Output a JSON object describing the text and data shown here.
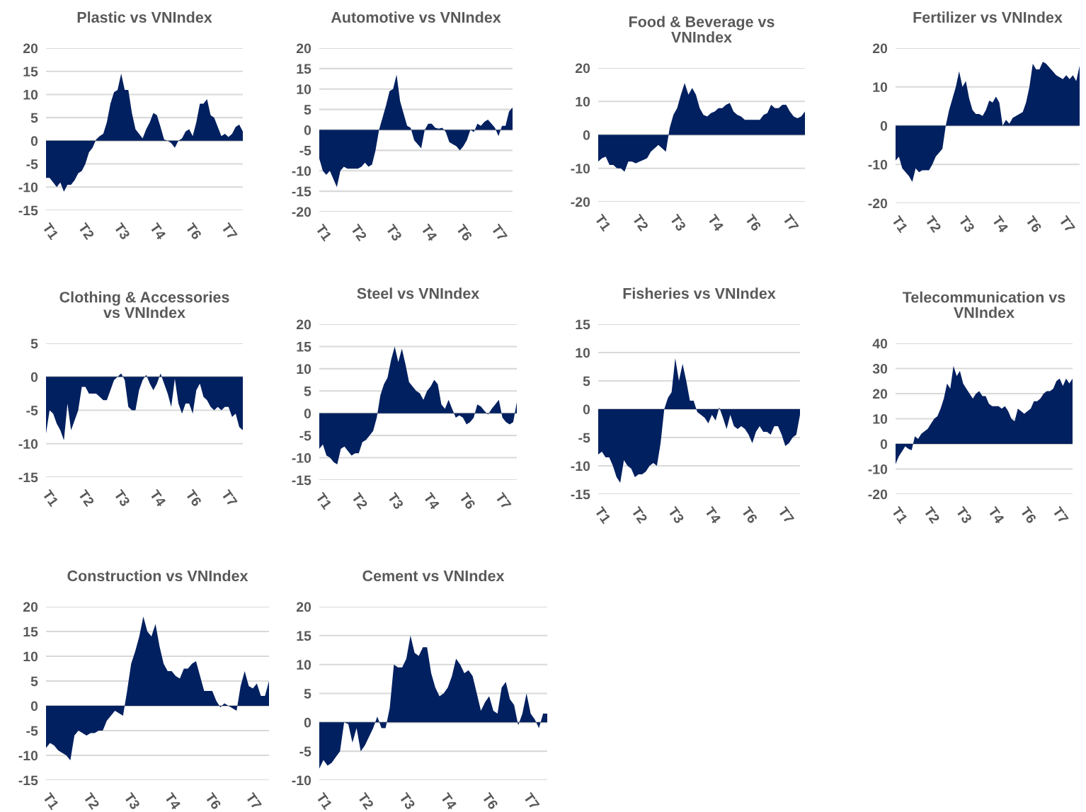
{
  "chart_data": [
    {
      "type": "area",
      "title": "Plastic vs VNIndex",
      "color": "#002060",
      "ylim": [
        -15,
        20
      ],
      "yticks": [
        -15,
        -10,
        -5,
        0,
        5,
        10,
        15,
        20
      ],
      "grid": "y",
      "categories": [
        null,
        "T1",
        null,
        null,
        null,
        null,
        null,
        null,
        null,
        null,
        null,
        "T2",
        null,
        null,
        null,
        null,
        null,
        null,
        null,
        null,
        null,
        "T3",
        null,
        null,
        null,
        null,
        null,
        null,
        null,
        null,
        null,
        "T4",
        null,
        null,
        null,
        null,
        null,
        null,
        null,
        null,
        null,
        "T6",
        null,
        null,
        null,
        null,
        null,
        null,
        null,
        null,
        null,
        "T7",
        null,
        null,
        null,
        null
      ],
      "values": [
        -8,
        -8,
        -9,
        -10,
        -9,
        -11,
        -9.5,
        -9.5,
        -8.5,
        -7,
        -6.5,
        -5,
        -2.5,
        -1.5,
        0.3,
        1,
        1.5,
        4,
        8,
        10.5,
        11,
        14.5,
        11,
        11,
        6,
        2.5,
        1.5,
        0.5,
        2.5,
        4,
        6,
        5.5,
        3,
        0.3,
        0,
        -0.5,
        -1.5,
        0,
        0.5,
        2,
        2.5,
        1,
        4,
        8,
        8,
        9,
        5.5,
        5,
        3,
        1,
        1.5,
        0.8,
        1.5,
        3,
        3.5,
        2
      ]
    },
    {
      "type": "area",
      "title": "Automotive vs VNIndex",
      "color": "#002060",
      "ylim": [
        -20,
        20
      ],
      "yticks": [
        -20,
        -15,
        -10,
        -5,
        0,
        5,
        10,
        15,
        20
      ],
      "grid": "y",
      "categories": [
        null,
        "T1",
        null,
        null,
        null,
        null,
        null,
        null,
        null,
        null,
        null,
        "T2",
        null,
        null,
        null,
        null,
        null,
        null,
        null,
        null,
        null,
        "T3",
        null,
        null,
        null,
        null,
        null,
        null,
        null,
        null,
        null,
        "T4",
        null,
        null,
        null,
        null,
        null,
        null,
        null,
        null,
        null,
        "T6",
        null,
        null,
        null,
        null,
        null,
        null,
        null,
        null,
        null,
        "T7",
        null,
        null,
        null,
        null
      ],
      "values": [
        -7,
        -10,
        -11,
        -10,
        -12,
        -14,
        -10,
        -9,
        -9.5,
        -9.5,
        -9.5,
        -9.5,
        -9,
        -8,
        -9,
        -8.5,
        -5,
        0,
        3,
        6,
        9.5,
        10,
        13.5,
        7,
        4,
        1,
        0.5,
        -2.5,
        -3.5,
        -4.5,
        0,
        1.5,
        1.5,
        0.5,
        0.3,
        0.5,
        -0.5,
        -3,
        -3.5,
        -4,
        -5,
        -4,
        -2.5,
        0,
        -0.5,
        1.5,
        1,
        2,
        2.5,
        1.5,
        0.5,
        -1.5,
        1,
        1,
        4.5,
        5.5
      ]
    },
    {
      "type": "area",
      "title": "Food & Beverage vs\nVNIndex",
      "color": "#002060",
      "ylim": [
        -20,
        20
      ],
      "yticks": [
        -20,
        -10,
        0,
        10,
        20
      ],
      "grid": "y",
      "categories": [
        null,
        "T1",
        null,
        null,
        null,
        null,
        null,
        null,
        null,
        null,
        null,
        "T2",
        null,
        null,
        null,
        null,
        null,
        null,
        null,
        null,
        null,
        "T3",
        null,
        null,
        null,
        null,
        null,
        null,
        null,
        null,
        null,
        "T4",
        null,
        null,
        null,
        null,
        null,
        null,
        null,
        null,
        null,
        "T6",
        null,
        null,
        null,
        null,
        null,
        null,
        null,
        null,
        null,
        "T7",
        null,
        null,
        null,
        null
      ],
      "values": [
        -8,
        -7,
        -6.5,
        -9,
        -9,
        -10,
        -10,
        -11,
        -8,
        -8,
        -8.5,
        -8,
        -7.5,
        -7,
        -5,
        -4,
        -3,
        -4,
        -5,
        2,
        6,
        8,
        12,
        15.5,
        12,
        14,
        12,
        8,
        6,
        5.5,
        6.5,
        7,
        8,
        8,
        9,
        9.5,
        7,
        6,
        5.5,
        4.5,
        4.5,
        4.5,
        4.5,
        4.5,
        6,
        6.5,
        9,
        8,
        8,
        9,
        9,
        7,
        5.5,
        5,
        5.5,
        7
      ]
    },
    {
      "type": "area",
      "title": "Fertilizer vs VNIndex",
      "color": "#002060",
      "ylim": [
        -20,
        20
      ],
      "yticks": [
        -20,
        -10,
        0,
        10,
        20
      ],
      "grid": "y",
      "categories": [
        null,
        "T1",
        null,
        null,
        null,
        null,
        null,
        null,
        null,
        null,
        null,
        "T2",
        null,
        null,
        null,
        null,
        null,
        null,
        null,
        null,
        null,
        "T3",
        null,
        null,
        null,
        null,
        null,
        null,
        null,
        null,
        null,
        "T4",
        null,
        null,
        null,
        null,
        null,
        null,
        null,
        null,
        null,
        "T6",
        null,
        null,
        null,
        null,
        null,
        null,
        null,
        null,
        null,
        "T7",
        null,
        null,
        null,
        null
      ],
      "values": [
        -9,
        -8,
        -11,
        -12,
        -13,
        -14.5,
        -11,
        -12,
        -11.5,
        -11.5,
        -11.5,
        -10,
        -8,
        -7,
        -6,
        0,
        4,
        7,
        10,
        14,
        10,
        11.5,
        7,
        4,
        3,
        3,
        2.5,
        4,
        6.5,
        6,
        7.5,
        6,
        0,
        1.5,
        0.5,
        2,
        2.5,
        3,
        3.5,
        6,
        10,
        16,
        14.5,
        14.5,
        16.5,
        16,
        15,
        14,
        13,
        12.5,
        12,
        13,
        12,
        13,
        11.5,
        15.5
      ]
    },
    {
      "type": "area",
      "title": "Clothing & Accessories\nvs VNIndex",
      "color": "#002060",
      "ylim": [
        -15,
        5
      ],
      "yticks": [
        -15,
        -10,
        -5,
        0,
        5
      ],
      "grid": "y",
      "categories": [
        null,
        "T1",
        null,
        null,
        null,
        null,
        null,
        null,
        null,
        null,
        null,
        "T2",
        null,
        null,
        null,
        null,
        null,
        null,
        null,
        null,
        null,
        "T3",
        null,
        null,
        null,
        null,
        null,
        null,
        null,
        null,
        null,
        "T4",
        null,
        null,
        null,
        null,
        null,
        null,
        null,
        null,
        null,
        "T6",
        null,
        null,
        null,
        null,
        null,
        null,
        null,
        null,
        null,
        "T7",
        null,
        null,
        null,
        null
      ],
      "values": [
        -8.5,
        -5,
        -5.5,
        -7,
        -8,
        -9.5,
        -4,
        -8,
        -6.5,
        -5,
        -1.5,
        -1.5,
        -2.5,
        -2.5,
        -2.5,
        -3,
        -3.5,
        -3.5,
        -2,
        -0.5,
        0,
        0.5,
        -0.5,
        -4.5,
        -5,
        -5,
        -2,
        -0.5,
        0.3,
        -1,
        -2,
        -1,
        0.5,
        -1,
        -2.5,
        -4.5,
        -0.3,
        -4,
        -5.5,
        -4,
        -4,
        -5.5,
        -2,
        -1,
        -3,
        -3.5,
        -4.5,
        -5,
        -4.5,
        -5,
        -4.5,
        -4.5,
        -6,
        -5.5,
        -7.5,
        -8
      ]
    },
    {
      "type": "area",
      "title": "Steel vs VNIndex",
      "color": "#002060",
      "ylim": [
        -15,
        20
      ],
      "yticks": [
        -15,
        -10,
        -5,
        0,
        5,
        10,
        15,
        20
      ],
      "grid": "y",
      "categories": [
        null,
        "T1",
        null,
        null,
        null,
        null,
        null,
        null,
        null,
        null,
        null,
        "T2",
        null,
        null,
        null,
        null,
        null,
        null,
        null,
        null,
        null,
        "T3",
        null,
        null,
        null,
        null,
        null,
        null,
        null,
        null,
        null,
        "T4",
        null,
        null,
        null,
        null,
        null,
        null,
        null,
        null,
        null,
        "T6",
        null,
        null,
        null,
        null,
        null,
        null,
        null,
        null,
        null,
        "T7",
        null,
        null,
        null,
        null
      ],
      "values": [
        -8,
        -7,
        -9.5,
        -10,
        -11,
        -11.5,
        -8,
        -7.5,
        -8.5,
        -9.5,
        -9,
        -9,
        -6.5,
        -6,
        -5,
        -4,
        -1,
        4,
        6.5,
        8,
        12,
        15,
        11.5,
        14.5,
        11,
        7,
        6,
        5,
        4.5,
        3,
        5,
        6,
        7.5,
        6.5,
        2,
        1,
        3,
        1,
        -1,
        -0.5,
        -1,
        -2.5,
        -2,
        -1,
        2,
        1.5,
        0.5,
        -0.3,
        1,
        2,
        3,
        -1,
        -2,
        -2.5,
        -2,
        2.5
      ]
    },
    {
      "type": "area",
      "title": "Fisheries vs VNIndex",
      "color": "#002060",
      "ylim": [
        -15,
        15
      ],
      "yticks": [
        -15,
        -10,
        -5,
        0,
        5,
        10,
        15
      ],
      "grid": "y",
      "categories": [
        null,
        "T1",
        null,
        null,
        null,
        null,
        null,
        null,
        null,
        null,
        null,
        "T2",
        null,
        null,
        null,
        null,
        null,
        null,
        null,
        null,
        null,
        "T3",
        null,
        null,
        null,
        null,
        null,
        null,
        null,
        null,
        null,
        "T4",
        null,
        null,
        null,
        null,
        null,
        null,
        null,
        null,
        null,
        "T6",
        null,
        null,
        null,
        null,
        null,
        null,
        null,
        null,
        null,
        "T7",
        null,
        null,
        null,
        null
      ],
      "values": [
        -8,
        -7.5,
        -8.5,
        -8.5,
        -10,
        -12,
        -13,
        -9,
        -10,
        -10.5,
        -12,
        -11.5,
        -11.5,
        -11,
        -10,
        -9.5,
        -10,
        -6,
        0,
        2,
        3,
        9,
        5,
        8,
        5,
        1.5,
        1.5,
        -0.5,
        -1,
        -1.5,
        -2.5,
        -1,
        -2,
        0.3,
        -1.5,
        -3.5,
        -1,
        -3,
        -3.5,
        -3,
        -3.5,
        -4.5,
        -6,
        -4,
        -3,
        -4,
        -4,
        -4.5,
        -3,
        -3,
        -4.5,
        -6.5,
        -6,
        -5,
        -4.5,
        -1
      ]
    },
    {
      "type": "area",
      "title": "Telecommunication vs\nVNIndex",
      "color": "#002060",
      "ylim": [
        -20,
        40
      ],
      "yticks": [
        -20,
        -10,
        0,
        10,
        20,
        30,
        40
      ],
      "grid": "y",
      "categories": [
        null,
        "T1",
        null,
        null,
        null,
        null,
        null,
        null,
        null,
        null,
        null,
        "T2",
        null,
        null,
        null,
        null,
        null,
        null,
        null,
        null,
        null,
        "T3",
        null,
        null,
        null,
        null,
        null,
        null,
        null,
        null,
        null,
        "T4",
        null,
        null,
        null,
        null,
        null,
        null,
        null,
        null,
        null,
        "T6",
        null,
        null,
        null,
        null,
        null,
        null,
        null,
        null,
        null,
        "T7",
        null,
        null,
        null,
        null
      ],
      "values": [
        -8,
        -5,
        -3,
        -1,
        -2,
        -2.5,
        3,
        2,
        4,
        5,
        6,
        8,
        10,
        11,
        14,
        18,
        24,
        22,
        31,
        27,
        29,
        24,
        22,
        20,
        18,
        20,
        21,
        19,
        19,
        16,
        15,
        15,
        15,
        14,
        15,
        13,
        10,
        9,
        14,
        13,
        12,
        13,
        14,
        17,
        17,
        18,
        20,
        21,
        21,
        22,
        25,
        26,
        23,
        26,
        24,
        26
      ]
    },
    {
      "type": "area",
      "title": "Construction vs VNIndex",
      "color": "#002060",
      "ylim": [
        -15,
        20
      ],
      "yticks": [
        -15,
        -10,
        -5,
        0,
        5,
        10,
        15,
        20
      ],
      "grid": "y",
      "categories": [
        null,
        "T1",
        null,
        null,
        null,
        null,
        null,
        null,
        null,
        null,
        null,
        "T2",
        null,
        null,
        null,
        null,
        null,
        null,
        null,
        null,
        null,
        "T3",
        null,
        null,
        null,
        null,
        null,
        null,
        null,
        null,
        null,
        "T4",
        null,
        null,
        null,
        null,
        null,
        null,
        null,
        null,
        null,
        "T6",
        null,
        null,
        null,
        null,
        null,
        null,
        null,
        null,
        null,
        "T7",
        null,
        null,
        null,
        null
      ],
      "values": [
        -8.5,
        -7.5,
        -8,
        -9,
        -9.5,
        -10,
        -11,
        -6,
        -5,
        -5.5,
        -6,
        -5.5,
        -5.5,
        -5,
        -5,
        -3,
        -2,
        -1,
        -1.5,
        -2,
        3,
        8.5,
        11,
        14,
        18,
        15,
        14,
        16.5,
        12,
        8.5,
        7,
        7,
        6,
        5.5,
        7.5,
        7.5,
        8.5,
        9,
        6,
        3,
        3,
        3,
        1,
        -0.3,
        0.5,
        0,
        -0.5,
        -1,
        4,
        7,
        4,
        3.5,
        4.5,
        2,
        2,
        5
      ]
    },
    {
      "type": "area",
      "title": "Cement vs VNIndex",
      "color": "#002060",
      "ylim": [
        -10,
        20
      ],
      "yticks": [
        -10,
        -5,
        0,
        5,
        10,
        15,
        20
      ],
      "grid": "y",
      "categories": [
        null,
        "T1",
        null,
        null,
        null,
        null,
        null,
        null,
        null,
        null,
        null,
        "T2",
        null,
        null,
        null,
        null,
        null,
        null,
        null,
        null,
        null,
        "T3",
        null,
        null,
        null,
        null,
        null,
        null,
        null,
        null,
        null,
        "T4",
        null,
        null,
        null,
        null,
        null,
        null,
        null,
        null,
        null,
        "T6",
        null,
        null,
        null,
        null,
        null,
        null,
        null,
        null,
        null,
        "T7",
        null,
        null,
        null,
        null
      ],
      "values": [
        -8,
        -6.5,
        -7.5,
        -7,
        -6,
        -5,
        0,
        -0.3,
        -3.5,
        -1,
        -5,
        -4,
        -2.5,
        -1,
        1,
        -1,
        -1,
        2.5,
        10,
        9.5,
        9.5,
        11,
        15,
        12,
        11.5,
        13,
        13,
        8.5,
        6,
        4.5,
        5,
        6,
        8,
        11,
        10,
        8.5,
        9,
        8,
        5,
        2,
        3.5,
        4.5,
        2,
        1.5,
        6,
        7,
        4,
        3,
        -0.5,
        1.5,
        5,
        1.5,
        0.5,
        -1,
        1.5,
        1.5
      ]
    }
  ]
}
